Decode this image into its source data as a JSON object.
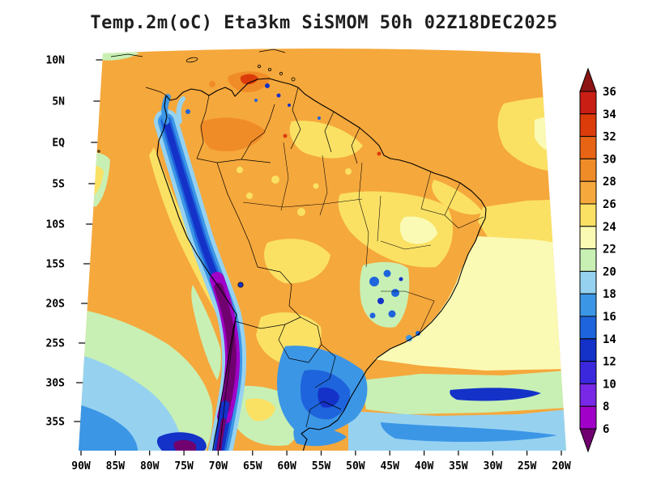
{
  "title": "Temp.2m(oC) Eta3km SiSMOM 50h 02Z18DEC2025",
  "axes": {
    "lat_labels": [
      "10N",
      "5N",
      "EQ",
      "5S",
      "10S",
      "15S",
      "20S",
      "25S",
      "30S",
      "35S"
    ],
    "lon_labels": [
      "90W",
      "85W",
      "80W",
      "75W",
      "70W",
      "65W",
      "60W",
      "55W",
      "50W",
      "45W",
      "40W",
      "35W",
      "30W",
      "25W",
      "20W"
    ]
  },
  "colorbar": {
    "tick_labels": [
      "36",
      "34",
      "32",
      "30",
      "28",
      "26",
      "24",
      "22",
      "20",
      "18",
      "16",
      "14",
      "12",
      "10",
      "8",
      "6"
    ],
    "segment_colors_top_to_bottom": [
      "#C81E14",
      "#DC3C0A",
      "#E66414",
      "#F08C28",
      "#F5A83C",
      "#FAE164",
      "#FAFAB4",
      "#C8F0B4",
      "#96D2F0",
      "#3C96E6",
      "#1E64DC",
      "#1432C8",
      "#3C28DC",
      "#7828E6",
      "#A000C8"
    ],
    "over_arrow_color": "#8C1414",
    "under_arrow_color": "#700070"
  },
  "chart_data": {
    "type": "heatmap",
    "title": "Temp.2m(oC) Eta3km SiSMOM 50h 02Z18DEC2025",
    "variable": "Temp.2m",
    "units": "oC",
    "model": "Eta3km",
    "system": "SiSMOM",
    "forecast_hour": "50h",
    "valid_time": "02Z18DEC2025",
    "region": "South America",
    "x_axis": {
      "ticks": [
        "90W",
        "85W",
        "80W",
        "75W",
        "70W",
        "65W",
        "60W",
        "55W",
        "50W",
        "45W",
        "40W",
        "35W",
        "30W",
        "25W",
        "20W"
      ],
      "range": [
        "90W",
        "20W"
      ]
    },
    "y_axis": {
      "ticks": [
        "10N",
        "5N",
        "EQ",
        "5S",
        "10S",
        "15S",
        "20S",
        "25S",
        "30S",
        "35S"
      ],
      "range": [
        "10N",
        "35S"
      ]
    },
    "color_levels_degC": [
      6,
      8,
      10,
      12,
      14,
      16,
      18,
      20,
      22,
      24,
      26,
      28,
      30,
      32,
      34,
      36
    ],
    "palette_cold_to_warm": [
      "#700070",
      "#A000C8",
      "#7828E6",
      "#3C28DC",
      "#1432C8",
      "#1E64DC",
      "#3C96E6",
      "#96D2F0",
      "#C8F0B4",
      "#FAFAB4",
      "#FAE164",
      "#F5A83C",
      "#F08C28",
      "#E66414",
      "#DC3C0A",
      "#C81E14",
      "#8C1414"
    ],
    "legend_position": "right",
    "notable_features": [
      "Warm 26-30 oC field over the Amazon basin and tropical Atlantic",
      "Cold band below 10 oC along the Andes cordillera with purple altiplano core",
      "Cool 12-20 oC pool over southern Brazil, Uruguay and the south Atlantic",
      "Pale yellow-green 18-24 oC waters in the southeastern Atlantic and along the Peru coast"
    ]
  }
}
